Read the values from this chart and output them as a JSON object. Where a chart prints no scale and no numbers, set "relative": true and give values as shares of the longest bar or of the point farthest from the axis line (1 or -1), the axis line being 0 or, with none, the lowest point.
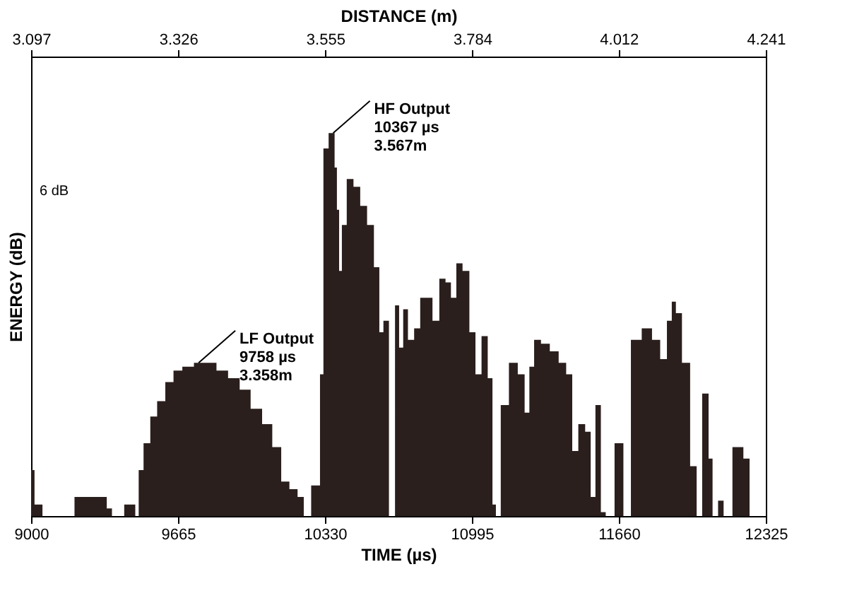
{
  "chart_data": {
    "type": "area",
    "relative": true,
    "xlabel": "TIME (µs)",
    "ylabel": "ENERGY (dB)",
    "x2label": "DISTANCE (m)",
    "xlim": [
      9000,
      12325
    ],
    "xticks": [
      9000,
      9665,
      10330,
      10995,
      11660,
      12325
    ],
    "x2lim": [
      3.097,
      4.241
    ],
    "x2ticks": [
      3.097,
      3.326,
      3.555,
      3.784,
      4.012,
      4.241
    ],
    "series": [
      {
        "color": "#2a1f1d",
        "x": [
          9000,
          9031,
          9043,
          9060,
          9333,
          9352,
          9380,
          9463,
          9480,
          9494,
          9524,
          9555,
          9586,
          9629,
          9660,
          9709,
          9765,
          9814,
          9864,
          9919,
          9969,
          10018,
          10073,
          10110,
          10154,
          10184,
          10228,
          10240,
          10295,
          10320,
          10326,
          10367,
          10380,
          10388,
          10400,
          10413,
          10444,
          10474,
          10505,
          10536,
          10567,
          10585,
          10604,
          10635,
          10659,
          10672,
          10696,
          10715,
          10752,
          10770,
          10801,
          10832,
          10863,
          10888,
          10912,
          10937,
          10968,
          10999,
          11023,
          11054,
          11079,
          11097,
          11110,
          11141,
          11184,
          11221,
          11246,
          11264,
          11289,
          11326,
          11369,
          11406,
          11437,
          11461,
          11492,
          11523,
          11542,
          11566,
          11591,
          11610,
          11671,
          11690,
          11739,
          11788,
          11832,
          11862,
          11893,
          11906,
          11930,
          11961,
          12004,
          12020,
          12054,
          12078,
          12090,
          12128,
          12140,
          12208,
          12239,
          12264,
          12325
        ],
        "values": [
          0.12,
          0.03,
          0.03,
          0,
          0.05,
          0.02,
          0,
          0.03,
          0,
          0.12,
          0.19,
          0.26,
          0.3,
          0.35,
          0.38,
          0.39,
          0.4,
          0.4,
          0.38,
          0.36,
          0.33,
          0.28,
          0.24,
          0.18,
          0.09,
          0.07,
          0.05,
          0,
          0.08,
          0.37,
          0.96,
          1.0,
          0.91,
          0.8,
          0.64,
          0.76,
          0.88,
          0.86,
          0.81,
          0.76,
          0.65,
          0.48,
          0.51,
          0,
          0.55,
          0.44,
          0.54,
          0.46,
          0.49,
          0.57,
          0.57,
          0.51,
          0.62,
          0.61,
          0.57,
          0.66,
          0.64,
          0.48,
          0.37,
          0.47,
          0.36,
          0.03,
          0,
          0.29,
          0.4,
          0.37,
          0.27,
          0.39,
          0.46,
          0.45,
          0.43,
          0.4,
          0.37,
          0.17,
          0.24,
          0.22,
          0.05,
          0.29,
          0.01,
          0,
          0.19,
          0,
          0.46,
          0.49,
          0.46,
          0.41,
          0.51,
          0.56,
          0.53,
          0.4,
          0.13,
          0,
          0.32,
          0.15,
          0,
          0.04,
          0,
          0.18,
          0.15,
          0,
          0
        ]
      }
    ],
    "annotations": [
      {
        "text": "HF Output\n10367 µs\n3.567m",
        "x": 10367,
        "y": 1.0
      },
      {
        "text": "LF Output\n9758 µs\n3.358m",
        "x": 9758,
        "y": 0.4
      },
      "6 dB"
    ]
  }
}
